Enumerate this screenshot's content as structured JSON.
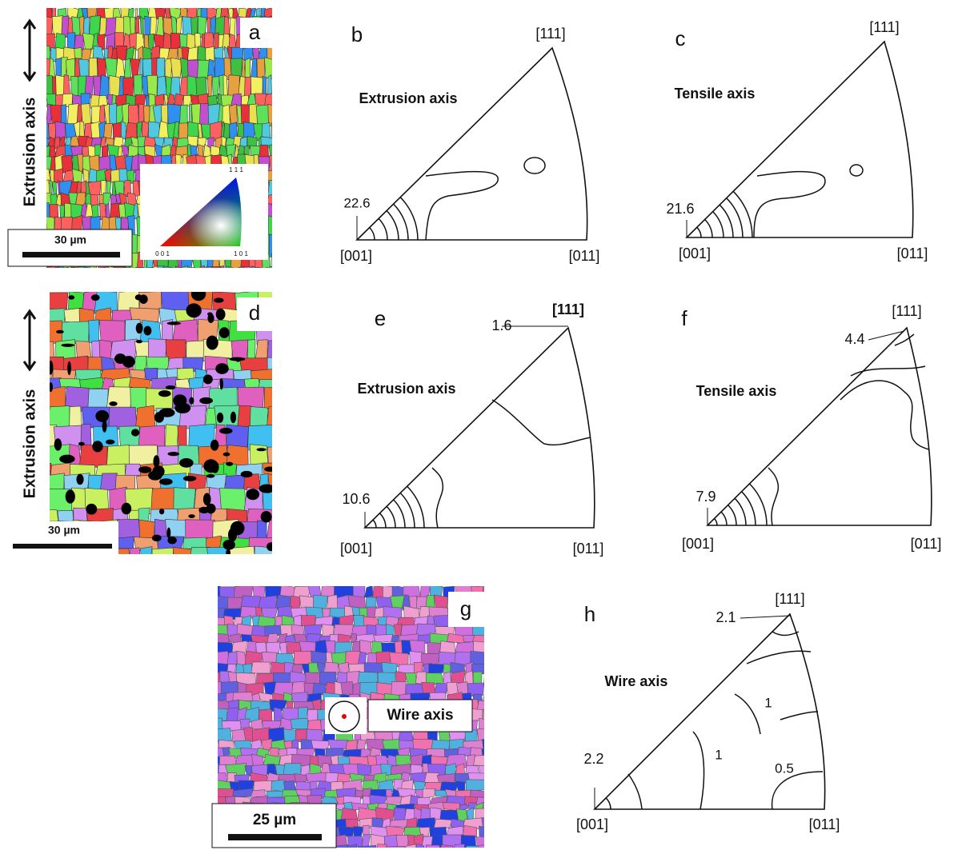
{
  "a": {
    "letter": "a",
    "axis_label": "Extrusion axis",
    "scale_bar": "30 µm",
    "key_top": "1 1 1",
    "key_left": "0 0 1",
    "key_right": "1 0 1"
  },
  "b": {
    "letter": "b",
    "title": "Extrusion axis",
    "corner_001": "[001]",
    "corner_011": "[011]",
    "corner_111": "[111]",
    "contour_labels": [
      22.6
    ]
  },
  "c": {
    "letter": "c",
    "title": "Tensile axis",
    "corner_001": "[001]",
    "corner_011": "[011]",
    "corner_111": "[111]",
    "contour_labels": [
      21.6
    ]
  },
  "d": {
    "letter": "d",
    "axis_label": "Extrusion axis",
    "scale_bar": "30 µm"
  },
  "e": {
    "letter": "e",
    "title": "Extrusion axis",
    "corner_001": "[001]",
    "corner_011": "[011]",
    "corner_111": "[111]",
    "contour_labels": [
      10.6,
      1.6
    ]
  },
  "f": {
    "letter": "f",
    "title": "Tensile axis",
    "corner_001": "[001]",
    "corner_011": "[011]",
    "corner_111": "[111]",
    "contour_labels": [
      7.9,
      4.4
    ]
  },
  "g": {
    "letter": "g",
    "axis_label": "Wire axis",
    "scale_bar": "25 µm"
  },
  "h": {
    "letter": "h",
    "title": "Wire axis",
    "corner_001": "[001]",
    "corner_011": "[011]",
    "corner_111": "[111]",
    "contour_labels": [
      2.2,
      2.1,
      1,
      1,
      0.5
    ]
  }
}
